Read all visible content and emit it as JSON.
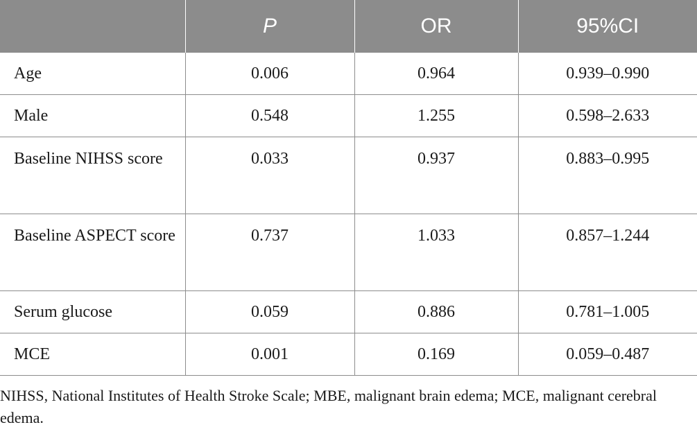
{
  "table": {
    "headers": [
      "",
      "P",
      "OR",
      "95%CI"
    ],
    "rows": [
      {
        "label": "Age",
        "p": "0.006",
        "or": "0.964",
        "ci": "0.939–0.990"
      },
      {
        "label": "Male",
        "p": "0.548",
        "or": "1.255",
        "ci": "0.598–2.633"
      },
      {
        "label": "Baseline NIHSS score",
        "p": "0.033",
        "or": "0.937",
        "ci": "0.883–0.995"
      },
      {
        "label": "Baseline ASPECT score",
        "p": "0.737",
        "or": "1.033",
        "ci": "0.857–1.244"
      },
      {
        "label": "Serum glucose",
        "p": "0.059",
        "or": "0.886",
        "ci": "0.781–1.005"
      },
      {
        "label": "MCE",
        "p": "0.001",
        "or": "0.169",
        "ci": "0.059–0.487"
      }
    ],
    "header_color": "#8c8c8c"
  },
  "footnote": "NIHSS, National Institutes of Health Stroke Scale; MBE, malignant brain edema; MCE, malignant cerebral edema."
}
